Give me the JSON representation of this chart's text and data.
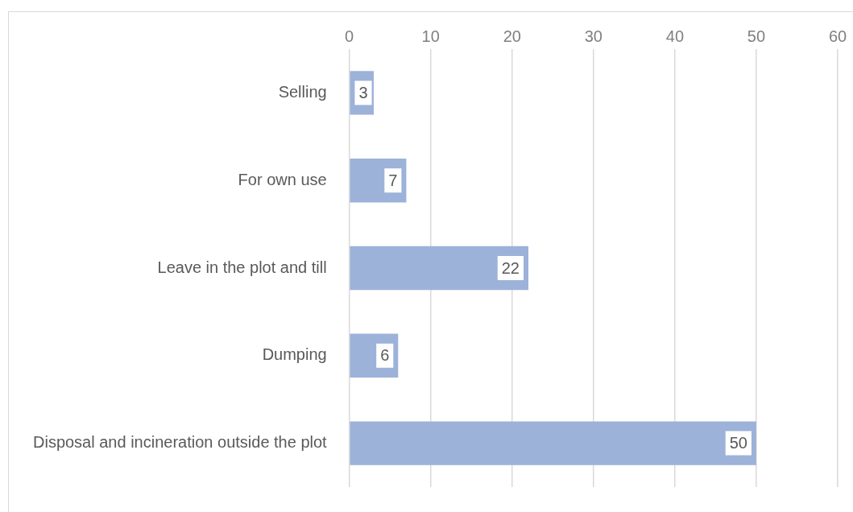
{
  "chart_data": {
    "type": "bar",
    "orientation": "horizontal",
    "categories": [
      "Selling",
      "For own use",
      "Leave in the plot and till",
      "Dumping",
      "Disposal and incineration outside the plot"
    ],
    "values": [
      3,
      7,
      22,
      6,
      50
    ],
    "color": "#9db2d9",
    "xlim": [
      0,
      60
    ],
    "xticks": [
      0,
      10,
      20,
      30,
      40,
      50,
      60
    ],
    "grid": "x",
    "data_labels": true
  }
}
